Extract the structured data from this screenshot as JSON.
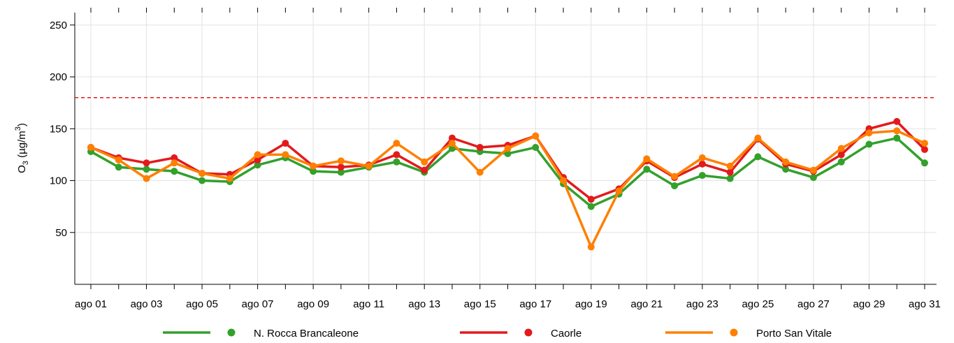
{
  "chart_data": {
    "type": "line",
    "ylabel": {
      "base": "O",
      "sub": "3",
      "unit": " (µg/m",
      "sup": "3",
      "close": ")"
    },
    "categories": [
      "ago 01",
      null,
      "ago 03",
      null,
      "ago 05",
      null,
      "ago 07",
      null,
      "ago 09",
      null,
      "ago 11",
      null,
      "ago 13",
      null,
      "ago 15",
      null,
      "ago 17",
      null,
      "ago 19",
      null,
      "ago 21",
      null,
      "ago 23",
      null,
      "ago 25",
      null,
      "ago 27",
      null,
      "ago 29",
      null,
      "ago 31"
    ],
    "series": [
      {
        "name": "N. Rocca Brancaleone",
        "color": "#33a02c",
        "values": [
          128,
          113,
          111,
          109,
          100,
          99,
          115,
          122,
          109,
          108,
          113,
          118,
          108,
          131,
          128,
          126,
          132,
          97,
          75,
          87,
          111,
          95,
          105,
          102,
          123,
          111,
          103,
          118,
          135,
          141,
          117
        ]
      },
      {
        "name": "Caorle",
        "color": "#e31a1c",
        "values": [
          132,
          122,
          117,
          122,
          107,
          106,
          120,
          136,
          114,
          113,
          115,
          125,
          110,
          141,
          132,
          134,
          143,
          103,
          82,
          92,
          119,
          103,
          116,
          108,
          140,
          116,
          109,
          125,
          150,
          157,
          130
        ]
      },
      {
        "name": "Porto San Vitale",
        "color": "#ff7f00",
        "values": [
          132,
          120,
          102,
          117,
          107,
          102,
          125,
          125,
          114,
          119,
          114,
          136,
          118,
          136,
          108,
          131,
          143,
          100,
          36,
          90,
          121,
          104,
          122,
          114,
          141,
          118,
          110,
          131,
          146,
          148,
          136
        ]
      }
    ],
    "threshold": 180,
    "threshold_color": "#e31a1c",
    "ylim": [
      0,
      262
    ],
    "yticks": [
      50,
      100,
      150,
      200,
      250
    ],
    "grid": true
  }
}
